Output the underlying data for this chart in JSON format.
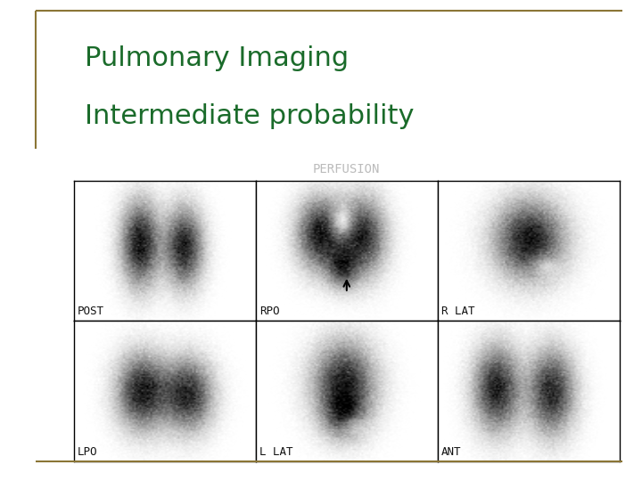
{
  "title_line1": "Pulmonary Imaging",
  "title_line2": "Intermediate probability",
  "title_color": "#1a6b2a",
  "title_fontsize": 22,
  "bg_color": "#ffffff",
  "border_color": "#8B7536",
  "panel_header": "PERFUSION",
  "panel_header_bg": "#111111",
  "panel_header_color": "#bbbbbb",
  "panel_bg": "#c0c0c0",
  "labels": [
    "POST",
    "RPO",
    "R LAT",
    "LPO",
    "L LAT",
    "ANT"
  ],
  "label_fontsize": 9,
  "label_color": "#111111"
}
